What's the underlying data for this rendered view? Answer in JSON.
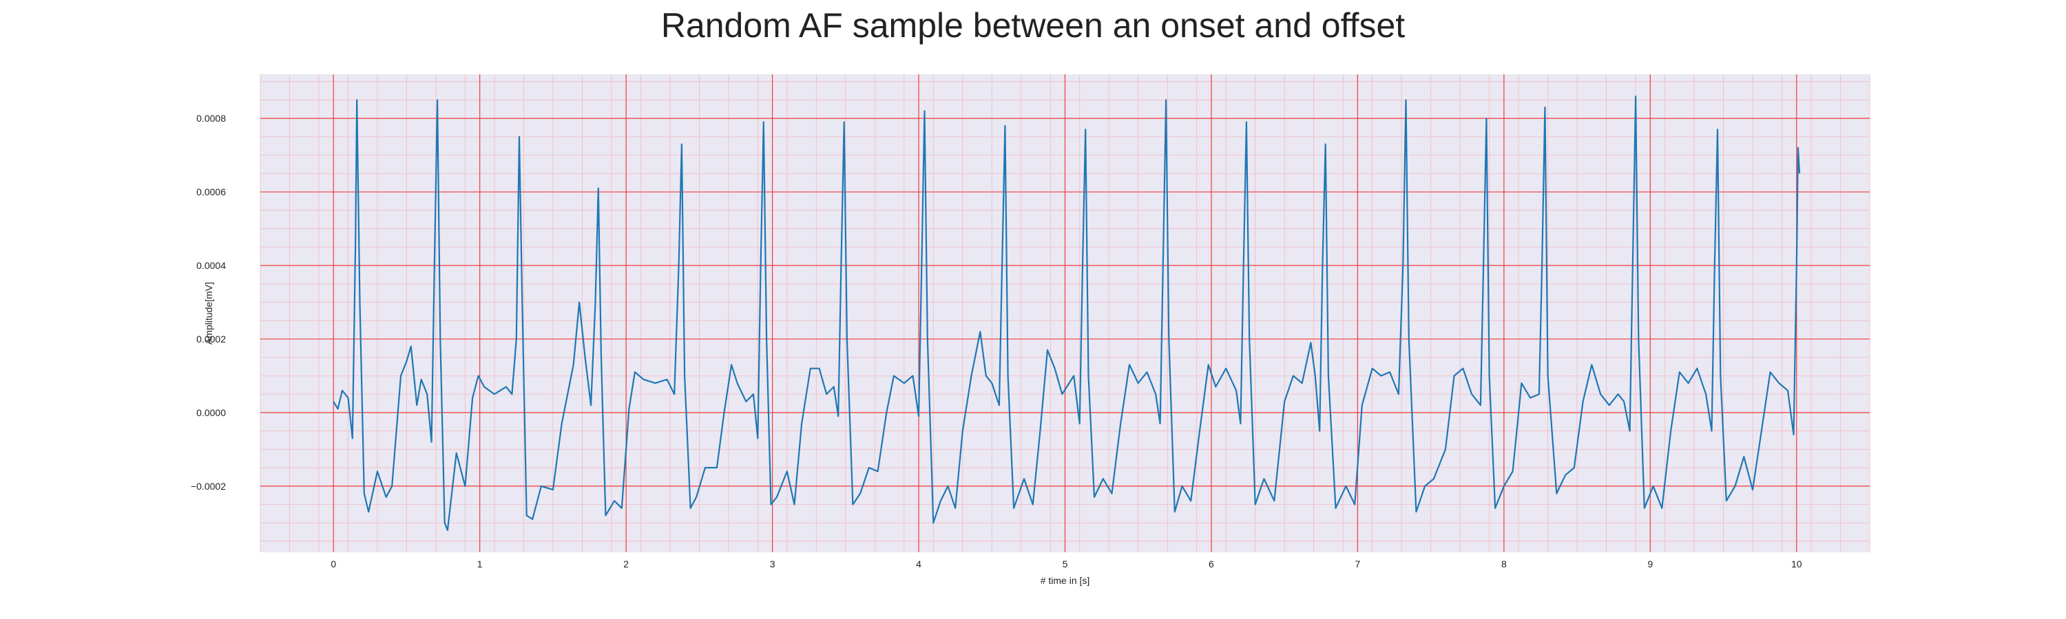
{
  "chart_data": {
    "type": "line",
    "title": "Random AF sample between an onset and offset",
    "xlabel": "# time in [s]",
    "ylabel": "Amplitude[mV]",
    "xlim": [
      -0.5,
      10.5
    ],
    "ylim": [
      -0.00038,
      0.00092
    ],
    "xticks": [
      0,
      1,
      2,
      3,
      4,
      5,
      6,
      7,
      8,
      9,
      10
    ],
    "xtick_labels": [
      "0",
      "1",
      "2",
      "3",
      "4",
      "5",
      "6",
      "7",
      "8",
      "9",
      "10"
    ],
    "yticks": [
      -0.0002,
      0.0,
      0.0002,
      0.0004,
      0.0006,
      0.0008
    ],
    "ytick_labels": [
      "−0.0002",
      "0.0000",
      "0.0002",
      "0.0004",
      "0.0006",
      "0.0008"
    ],
    "grid": "major and minor",
    "legend": "none",
    "colors": {
      "line": "#1f77b4",
      "plot_background": "#eae8f2",
      "major_grid": "#ef3b3b",
      "minor_grid": "#f2b9c3"
    },
    "series": [
      {
        "points": [
          [
            0.0,
            3e-05
          ],
          [
            0.03,
            1e-05
          ],
          [
            0.06,
            6e-05
          ],
          [
            0.1,
            4e-05
          ],
          [
            0.13,
            -7e-05
          ],
          [
            0.15,
            0.00045
          ],
          [
            0.16,
            0.00085
          ],
          [
            0.18,
            0.0003
          ],
          [
            0.21,
            -0.00022
          ],
          [
            0.24,
            -0.00027
          ],
          [
            0.3,
            -0.00016
          ],
          [
            0.36,
            -0.00023
          ],
          [
            0.4,
            -0.0002
          ],
          [
            0.46,
            0.0001
          ],
          [
            0.5,
            0.00014
          ],
          [
            0.53,
            0.00018
          ],
          [
            0.57,
            2e-05
          ],
          [
            0.6,
            9e-05
          ],
          [
            0.64,
            5e-05
          ],
          [
            0.67,
            -8e-05
          ],
          [
            0.69,
            0.0004
          ],
          [
            0.71,
            0.00085
          ],
          [
            0.73,
            0.0002
          ],
          [
            0.76,
            -0.0003
          ],
          [
            0.78,
            -0.00032
          ],
          [
            0.84,
            -0.00011
          ],
          [
            0.9,
            -0.0002
          ],
          [
            0.95,
            4e-05
          ],
          [
            0.99,
            0.0001
          ],
          [
            1.03,
            7e-05
          ],
          [
            1.1,
            5e-05
          ],
          [
            1.18,
            7e-05
          ],
          [
            1.22,
            5e-05
          ],
          [
            1.25,
            0.0002
          ],
          [
            1.27,
            0.00075
          ],
          [
            1.29,
            0.0003
          ],
          [
            1.32,
            -0.00028
          ],
          [
            1.36,
            -0.00029
          ],
          [
            1.42,
            -0.0002
          ],
          [
            1.5,
            -0.00021
          ],
          [
            1.56,
            -3e-05
          ],
          [
            1.6,
            5e-05
          ],
          [
            1.64,
            0.00013
          ],
          [
            1.68,
            0.0003
          ],
          [
            1.72,
            0.00015
          ],
          [
            1.76,
            2e-05
          ],
          [
            1.79,
            0.0003
          ],
          [
            1.81,
            0.00061
          ],
          [
            1.83,
            0.00015
          ],
          [
            1.86,
            -0.00028
          ],
          [
            1.92,
            -0.00024
          ],
          [
            1.97,
            -0.00026
          ],
          [
            2.02,
            1e-05
          ],
          [
            2.06,
            0.00011
          ],
          [
            2.12,
            9e-05
          ],
          [
            2.2,
            8e-05
          ],
          [
            2.28,
            9e-05
          ],
          [
            2.33,
            5e-05
          ],
          [
            2.36,
            0.0004
          ],
          [
            2.38,
            0.00073
          ],
          [
            2.4,
            0.0001
          ],
          [
            2.44,
            -0.00026
          ],
          [
            2.48,
            -0.00023
          ],
          [
            2.54,
            -0.00015
          ],
          [
            2.62,
            -0.00015
          ],
          [
            2.67,
            0.0
          ],
          [
            2.72,
            0.00013
          ],
          [
            2.76,
            8e-05
          ],
          [
            2.82,
            3e-05
          ],
          [
            2.87,
            5e-05
          ],
          [
            2.9,
            -7e-05
          ],
          [
            2.92,
            0.0004
          ],
          [
            2.94,
            0.00079
          ],
          [
            2.96,
            0.0002
          ],
          [
            2.99,
            -0.00025
          ],
          [
            3.03,
            -0.00023
          ],
          [
            3.1,
            -0.00016
          ],
          [
            3.15,
            -0.00025
          ],
          [
            3.2,
            -3e-05
          ],
          [
            3.26,
            0.00012
          ],
          [
            3.32,
            0.00012
          ],
          [
            3.37,
            5e-05
          ],
          [
            3.42,
            7e-05
          ],
          [
            3.45,
            -1e-05
          ],
          [
            3.47,
            0.0004
          ],
          [
            3.49,
            0.00079
          ],
          [
            3.51,
            0.0002
          ],
          [
            3.55,
            -0.00025
          ],
          [
            3.6,
            -0.00022
          ],
          [
            3.66,
            -0.00015
          ],
          [
            3.72,
            -0.00016
          ],
          [
            3.78,
            0.0
          ],
          [
            3.83,
            0.0001
          ],
          [
            3.9,
            8e-05
          ],
          [
            3.96,
            0.0001
          ],
          [
            4.0,
            -1e-05
          ],
          [
            4.02,
            0.0004
          ],
          [
            4.04,
            0.00082
          ],
          [
            4.06,
            0.0002
          ],
          [
            4.1,
            -0.0003
          ],
          [
            4.15,
            -0.00024
          ],
          [
            4.2,
            -0.0002
          ],
          [
            4.25,
            -0.00026
          ],
          [
            4.3,
            -5e-05
          ],
          [
            4.36,
            0.0001
          ],
          [
            4.42,
            0.00022
          ],
          [
            4.46,
            0.0001
          ],
          [
            4.5,
            8e-05
          ],
          [
            4.55,
            2e-05
          ],
          [
            4.57,
            0.0004
          ],
          [
            4.59,
            0.00078
          ],
          [
            4.61,
            0.0001
          ],
          [
            4.65,
            -0.00026
          ],
          [
            4.72,
            -0.00018
          ],
          [
            4.78,
            -0.00025
          ],
          [
            4.83,
            -5e-05
          ],
          [
            4.88,
            0.00017
          ],
          [
            4.93,
            0.00012
          ],
          [
            4.98,
            5e-05
          ],
          [
            5.06,
            0.0001
          ],
          [
            5.1,
            -3e-05
          ],
          [
            5.12,
            0.0004
          ],
          [
            5.14,
            0.00077
          ],
          [
            5.16,
            0.0001
          ],
          [
            5.2,
            -0.00023
          ],
          [
            5.26,
            -0.00018
          ],
          [
            5.32,
            -0.00022
          ],
          [
            5.38,
            -3e-05
          ],
          [
            5.44,
            0.00013
          ],
          [
            5.5,
            8e-05
          ],
          [
            5.56,
            0.00011
          ],
          [
            5.62,
            5e-05
          ],
          [
            5.65,
            -3e-05
          ],
          [
            5.67,
            0.0004
          ],
          [
            5.69,
            0.00085
          ],
          [
            5.71,
            0.0002
          ],
          [
            5.75,
            -0.00027
          ],
          [
            5.8,
            -0.0002
          ],
          [
            5.86,
            -0.00024
          ],
          [
            5.92,
            -5e-05
          ],
          [
            5.98,
            0.00013
          ],
          [
            6.03,
            7e-05
          ],
          [
            6.1,
            0.00012
          ],
          [
            6.17,
            6e-05
          ],
          [
            6.2,
            -3e-05
          ],
          [
            6.22,
            0.0004
          ],
          [
            6.24,
            0.00079
          ],
          [
            6.26,
            0.0002
          ],
          [
            6.3,
            -0.00025
          ],
          [
            6.36,
            -0.00018
          ],
          [
            6.43,
            -0.00024
          ],
          [
            6.5,
            3e-05
          ],
          [
            6.56,
            0.0001
          ],
          [
            6.62,
            8e-05
          ],
          [
            6.68,
            0.00019
          ],
          [
            6.71,
            0.0001
          ],
          [
            6.74,
            -5e-05
          ],
          [
            6.76,
            0.0004
          ],
          [
            6.78,
            0.00073
          ],
          [
            6.8,
            0.0001
          ],
          [
            6.85,
            -0.00026
          ],
          [
            6.92,
            -0.0002
          ],
          [
            6.98,
            -0.00025
          ],
          [
            7.03,
            2e-05
          ],
          [
            7.1,
            0.00012
          ],
          [
            7.16,
            0.0001
          ],
          [
            7.22,
            0.00011
          ],
          [
            7.28,
            5e-05
          ],
          [
            7.31,
            0.0004
          ],
          [
            7.33,
            0.00085
          ],
          [
            7.35,
            0.0002
          ],
          [
            7.4,
            -0.00027
          ],
          [
            7.46,
            -0.0002
          ],
          [
            7.52,
            -0.00018
          ],
          [
            7.6,
            -0.0001
          ],
          [
            7.66,
            0.0001
          ],
          [
            7.72,
            0.00012
          ],
          [
            7.78,
            5e-05
          ],
          [
            7.84,
            2e-05
          ],
          [
            7.86,
            0.0004
          ],
          [
            7.88,
            0.0008
          ],
          [
            7.9,
            0.0001
          ],
          [
            7.94,
            -0.00026
          ],
          [
            8.0,
            -0.0002
          ],
          [
            8.06,
            -0.00016
          ],
          [
            8.12,
            8e-05
          ],
          [
            8.18,
            4e-05
          ],
          [
            8.24,
            5e-05
          ],
          [
            8.26,
            0.0004
          ],
          [
            8.28,
            0.00083
          ],
          [
            8.3,
            0.0001
          ],
          [
            8.36,
            -0.00022
          ],
          [
            8.42,
            -0.00017
          ],
          [
            8.48,
            -0.00015
          ],
          [
            8.54,
            3e-05
          ],
          [
            8.6,
            0.00013
          ],
          [
            8.66,
            5e-05
          ],
          [
            8.72,
            2e-05
          ],
          [
            8.78,
            5e-05
          ],
          [
            8.82,
            3e-05
          ],
          [
            8.86,
            -5e-05
          ],
          [
            8.88,
            0.0004
          ],
          [
            8.9,
            0.00086
          ],
          [
            8.92,
            0.0002
          ],
          [
            8.96,
            -0.00026
          ],
          [
            9.02,
            -0.0002
          ],
          [
            9.08,
            -0.00026
          ],
          [
            9.14,
            -5e-05
          ],
          [
            9.2,
            0.00011
          ],
          [
            9.26,
            8e-05
          ],
          [
            9.32,
            0.00012
          ],
          [
            9.38,
            5e-05
          ],
          [
            9.42,
            -5e-05
          ],
          [
            9.44,
            0.0004
          ],
          [
            9.46,
            0.00077
          ],
          [
            9.48,
            0.0001
          ],
          [
            9.52,
            -0.00024
          ],
          [
            9.58,
            -0.0002
          ],
          [
            9.64,
            -0.00012
          ],
          [
            9.7,
            -0.00021
          ],
          [
            9.76,
            -5e-05
          ],
          [
            9.82,
            0.00011
          ],
          [
            9.88,
            8e-05
          ],
          [
            9.94,
            6e-05
          ],
          [
            9.98,
            -6e-05
          ],
          [
            10.0,
            0.0004
          ],
          [
            10.01,
            0.00072
          ],
          [
            10.02,
            0.00065
          ]
        ]
      }
    ]
  }
}
